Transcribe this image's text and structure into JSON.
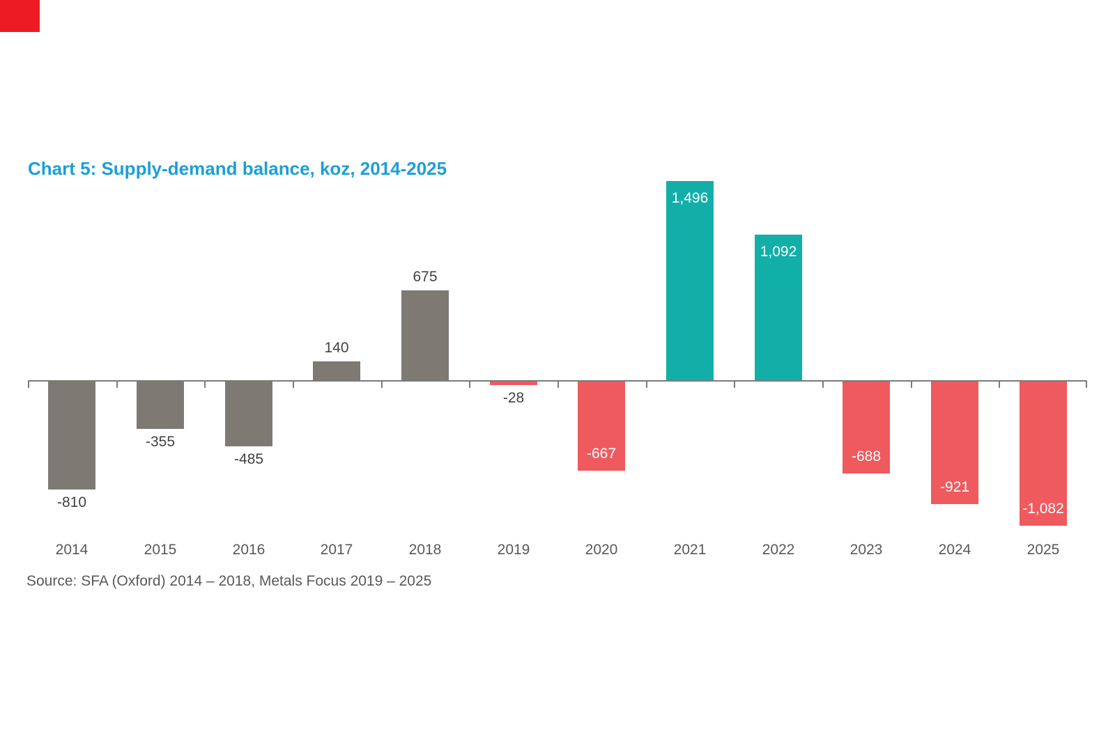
{
  "page": {
    "background": "#ffffff",
    "corner_marker_color": "#ED1C24"
  },
  "chart_data": {
    "type": "bar",
    "title": "Chart 5: Supply-demand balance, koz, 2014-2025",
    "xlabel": "",
    "ylabel": "",
    "categories": [
      "2014",
      "2015",
      "2016",
      "2017",
      "2018",
      "2019",
      "2020",
      "2021",
      "2022",
      "2023",
      "2024",
      "2025"
    ],
    "values": [
      -810,
      -355,
      -485,
      140,
      675,
      -28,
      -667,
      1496,
      1092,
      -688,
      -921,
      -1082
    ],
    "value_labels": [
      "-810",
      "-355",
      "-485",
      "140",
      "675",
      "-28",
      "-667",
      "1,496",
      "1,092",
      "-688",
      "-921",
      "-1,082"
    ],
    "bar_color_keys": [
      "taupe",
      "taupe",
      "taupe",
      "taupe",
      "taupe",
      "red",
      "red",
      "teal",
      "teal",
      "red",
      "red",
      "red"
    ],
    "label_placement": [
      "below",
      "below",
      "below",
      "above",
      "above",
      "below",
      "inside-bottom",
      "inside-top",
      "inside-top",
      "inside-bottom",
      "inside-bottom",
      "inside-bottom"
    ],
    "ylim": [
      -1150,
      1550
    ],
    "grid": "off",
    "legend": "none",
    "source": "Source: SFA (Oxford) 2014 – 2018, Metals Focus 2019 – 2025"
  },
  "colors": {
    "taupe": "#7F7974",
    "red": "#EF5A5E",
    "teal": "#12AFA9",
    "title": "#1B9FD8",
    "axis": "#7A7A7A",
    "label_dark": "#414141",
    "label_light": "#FFFFFF",
    "text_gray": "#58595B"
  }
}
